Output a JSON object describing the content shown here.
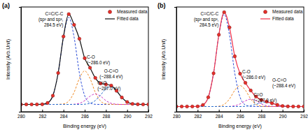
{
  "chart_data": [
    {
      "type": "line",
      "title": "(a)",
      "x_label": "Binding energy (eV)",
      "y_label": "Intensity (Arb.Unit)",
      "x": [
        280,
        280.5,
        281,
        281.5,
        282,
        282.5,
        283,
        283.5,
        284,
        284.5,
        285,
        285.5,
        286,
        286.5,
        287,
        287.5,
        288,
        288.5,
        289,
        289.5,
        290,
        290.5,
        291,
        291.5,
        292
      ],
      "xlim": [
        280,
        292
      ],
      "xticks": [
        280,
        282,
        284,
        286,
        288,
        290,
        292
      ],
      "ylim": [
        0,
        100
      ],
      "yticks": [],
      "tick_labels": "x",
      "legend": "top-right",
      "series": [
        {
          "name": "Measured data",
          "type": "scatter",
          "marker": "circle",
          "color": "#e8302a",
          "values": [
            7,
            7,
            7,
            7,
            7.1,
            8.4,
            15.3,
            37.0,
            71.8,
            93.2,
            83.0,
            69.7,
            51.1,
            42.0,
            32.3,
            27.0,
            26.1,
            25.0,
            20.0,
            13.6,
            9.3,
            7.5,
            7.1,
            7,
            7
          ]
        },
        {
          "name": "Fitted data",
          "type": "line",
          "line_style": "solid",
          "color": "#111111",
          "values": [
            7,
            7,
            7,
            7,
            7.1,
            8.4,
            15.3,
            37.0,
            71.8,
            93.2,
            83.0,
            69.7,
            51.1,
            42.0,
            32.3,
            27.0,
            26.1,
            25.0,
            20.0,
            13.6,
            9.3,
            7.5,
            7.1,
            7,
            7
          ]
        },
        {
          "type": "line",
          "line_style": "dashed",
          "color": "#2e4fd8",
          "annotation": [
            "C=C/C-C",
            "(sp² and sp³,",
            "284.5 eV)"
          ],
          "values": [
            7,
            7,
            7,
            7,
            7.1,
            8.4,
            15.3,
            36.9,
            71.3,
            90,
            71.3,
            36.9,
            15.3,
            8.4,
            7.1,
            7,
            7,
            7,
            7,
            7,
            7,
            7,
            7,
            7,
            7
          ]
        },
        {
          "type": "line",
          "line_style": "dashed",
          "color": "#f08a24",
          "annotation": [
            "C-O",
            "(~286.0 eV)"
          ],
          "values": [
            7,
            7,
            7,
            7,
            7,
            7,
            7,
            7.1,
            7.5,
            10.2,
            18.5,
            31.8,
            39,
            31.8,
            18.5,
            10.2,
            7.5,
            7.1,
            7,
            7,
            7,
            7,
            7,
            7,
            7
          ]
        },
        {
          "type": "line",
          "line_style": "dashed",
          "color": "#cc36c4",
          "annotation": [
            "C=O",
            "(~287.0 eV)"
          ],
          "values": [
            7,
            7,
            7,
            7,
            7,
            7,
            7,
            7,
            7,
            7,
            7.2,
            8.0,
            10.6,
            14.8,
            17,
            14.8,
            10.6,
            8.0,
            7.2,
            7,
            7,
            7,
            7,
            7,
            7
          ]
        },
        {
          "type": "line",
          "line_style": "dashed",
          "color": "#2a6fcf",
          "annotation": [
            "O-C=O",
            "(~288.4 eV)"
          ],
          "values": [
            7,
            7,
            7,
            7,
            7,
            7,
            7,
            7,
            7,
            7,
            7,
            7,
            7.2,
            8.0,
            10.7,
            16.0,
            22.0,
            23.9,
            19.8,
            13.6,
            9.3,
            7.5,
            7.1,
            7,
            7
          ]
        }
      ]
    },
    {
      "type": "line",
      "title": "(b)",
      "x_label": "Binding energy (eV)",
      "y_label": "Intensity (Arb.Unit)",
      "x": [
        280,
        280.5,
        281,
        281.5,
        282,
        282.5,
        283,
        283.5,
        284,
        284.5,
        285,
        285.5,
        286,
        286.5,
        287,
        287.5,
        288,
        288.5,
        289,
        289.5,
        290,
        290.5,
        291,
        291.5,
        292
      ],
      "xlim": [
        280,
        292
      ],
      "xticks": [
        280,
        282,
        284,
        286,
        288,
        290,
        292
      ],
      "ylim": [
        0,
        100
      ],
      "yticks": [],
      "tick_labels": "x",
      "legend": "top-right",
      "series": [
        {
          "name": "Measured data",
          "type": "scatter",
          "marker": "circle",
          "color": "#e8302a",
          "values": [
            5,
            5,
            5,
            5,
            5.1,
            6.5,
            13.8,
            36.7,
            73.5,
            95.0,
            80.5,
            52.9,
            36.3,
            27.6,
            20.3,
            14.5,
            11.3,
            9.7,
            8.1,
            6.6,
            5.5,
            5.1,
            5,
            5,
            5
          ]
        },
        {
          "name": "Fitted data",
          "type": "line",
          "line_style": "solid",
          "color": "#f0304a",
          "values": [
            5,
            5,
            5,
            5,
            5.1,
            6.5,
            13.8,
            36.7,
            73.5,
            95.0,
            80.5,
            52.9,
            36.3,
            27.6,
            20.3,
            14.5,
            11.3,
            9.7,
            8.1,
            6.6,
            5.5,
            5.1,
            5,
            5,
            5
          ]
        },
        {
          "type": "line",
          "line_style": "dashed",
          "color": "#2e4fd8",
          "annotation": [
            "C=C/C-C",
            "(sp² and sp³,",
            "284.5 eV)"
          ],
          "values": [
            5,
            5,
            5,
            5,
            5.1,
            6.5,
            13.8,
            36.7,
            73.2,
            93,
            73.2,
            36.7,
            13.8,
            6.5,
            5.1,
            5,
            5,
            5,
            5,
            5,
            5,
            5,
            5,
            5,
            5
          ]
        },
        {
          "type": "line",
          "line_style": "dashed",
          "color": "#f08a24",
          "annotation": [
            "C-O",
            "(~286.0 eV)"
          ],
          "values": [
            5,
            5,
            5,
            5,
            5,
            5,
            5,
            5,
            5.3,
            7.0,
            12.2,
            20.5,
            25,
            20.5,
            12.2,
            7.0,
            5.3,
            5,
            5,
            5,
            5,
            5,
            5,
            5,
            5
          ]
        },
        {
          "type": "line",
          "line_style": "dashed",
          "color": "#cc36c4",
          "annotation": [
            "C=O",
            "(~287.0 eV)"
          ],
          "values": [
            5,
            5,
            5,
            5,
            5,
            5,
            5,
            5,
            5,
            5,
            5.1,
            5.7,
            7.5,
            10.4,
            12,
            10.4,
            7.5,
            5.7,
            5.1,
            5,
            5,
            5,
            5,
            5,
            5
          ]
        },
        {
          "type": "line",
          "line_style": "dashed",
          "color": "#2a6fcf",
          "annotation": [
            "O-C=O",
            "(~288.4 eV)"
          ],
          "values": [
            5,
            5,
            5,
            5,
            5,
            5,
            5,
            5,
            5,
            5,
            5,
            5,
            5,
            5.2,
            5.9,
            7.1,
            8.5,
            9.0,
            8.0,
            6.6,
            5.5,
            5.1,
            5,
            5,
            5
          ]
        }
      ]
    }
  ]
}
